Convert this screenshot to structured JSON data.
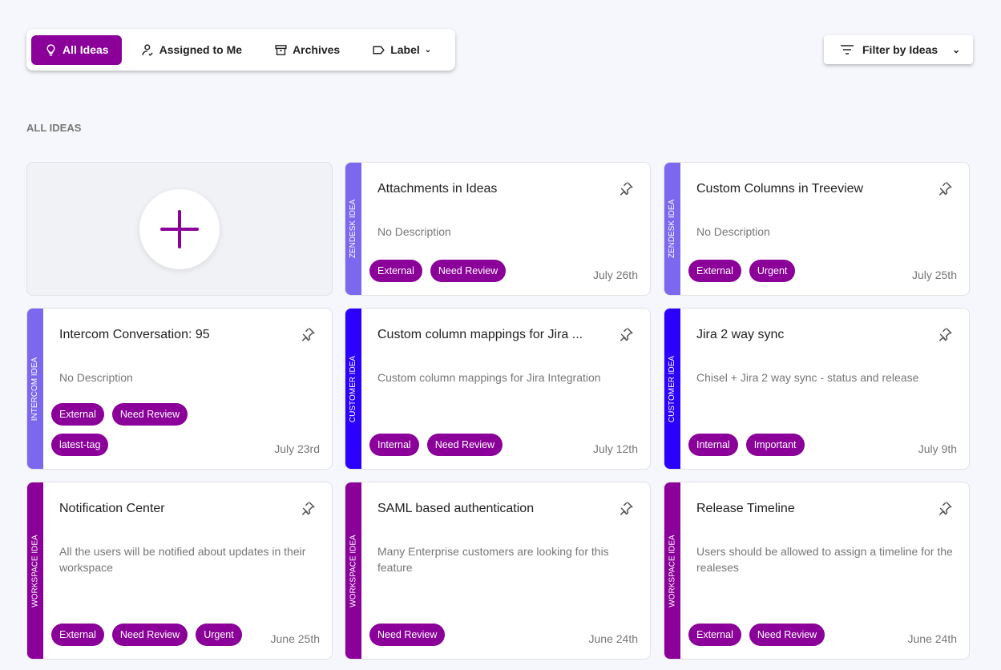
{
  "tabs": [
    {
      "label": "All Ideas",
      "icon": "lightbulb-icon"
    },
    {
      "label": "Assigned to Me",
      "icon": "user-check-icon"
    },
    {
      "label": "Archives",
      "icon": "archive-icon"
    },
    {
      "label": "Label",
      "icon": "label-icon"
    }
  ],
  "filter": {
    "label": "Filter by Ideas"
  },
  "section_title": "ALL IDEAS",
  "colors": {
    "accent": "#8a0099",
    "zendesk": "#7b68ee",
    "intercom": "#7b68ee",
    "customer": "#2b00ff",
    "workspace": "#8a0099"
  },
  "cards": [
    {
      "source": "ZENDESK IDEA",
      "title": "Attachments in Ideas",
      "description": "No Description",
      "tags": [
        "External",
        "Need Review"
      ],
      "date": "July 26th"
    },
    {
      "source": "ZENDESK IDEA",
      "title": "Custom Columns in Treeview",
      "description": "No Description",
      "tags": [
        "External",
        "Urgent"
      ],
      "date": "July 25th"
    },
    {
      "source": "INTERCOM IDEA",
      "title": "Intercom Conversation: 95",
      "description": "No Description",
      "tags": [
        "External",
        "Need Review",
        "latest-tag"
      ],
      "date": "July 23rd"
    },
    {
      "source": "CUSTOMER IDEA",
      "title": "Custom column mappings for Jira ...",
      "description": "Custom column mappings for Jira Integration",
      "tags": [
        "Internal",
        "Need Review"
      ],
      "date": "July 12th"
    },
    {
      "source": "CUSTOMER IDEA",
      "title": "Jira 2 way sync",
      "description": "Chisel + Jira 2 way sync - status and release",
      "tags": [
        "Internal",
        "Important"
      ],
      "date": "July 9th"
    },
    {
      "source": "WORKSPACE IDEA",
      "title": "Notification Center",
      "description": "All the users will be notified about updates in their workspace",
      "tags": [
        "External",
        "Need Review",
        "Urgent"
      ],
      "date": "June 25th"
    },
    {
      "source": "WORKSPACE IDEA",
      "title": "SAML based authentication",
      "description": "Many Enterprise customers are looking for this feature",
      "tags": [
        "Need Review"
      ],
      "date": "June 24th"
    },
    {
      "source": "WORKSPACE IDEA",
      "title": "Release Timeline",
      "description": "Users should be allowed to assign a timeline for the realeses",
      "tags": [
        "External",
        "Need Review"
      ],
      "date": "June 24th"
    }
  ]
}
